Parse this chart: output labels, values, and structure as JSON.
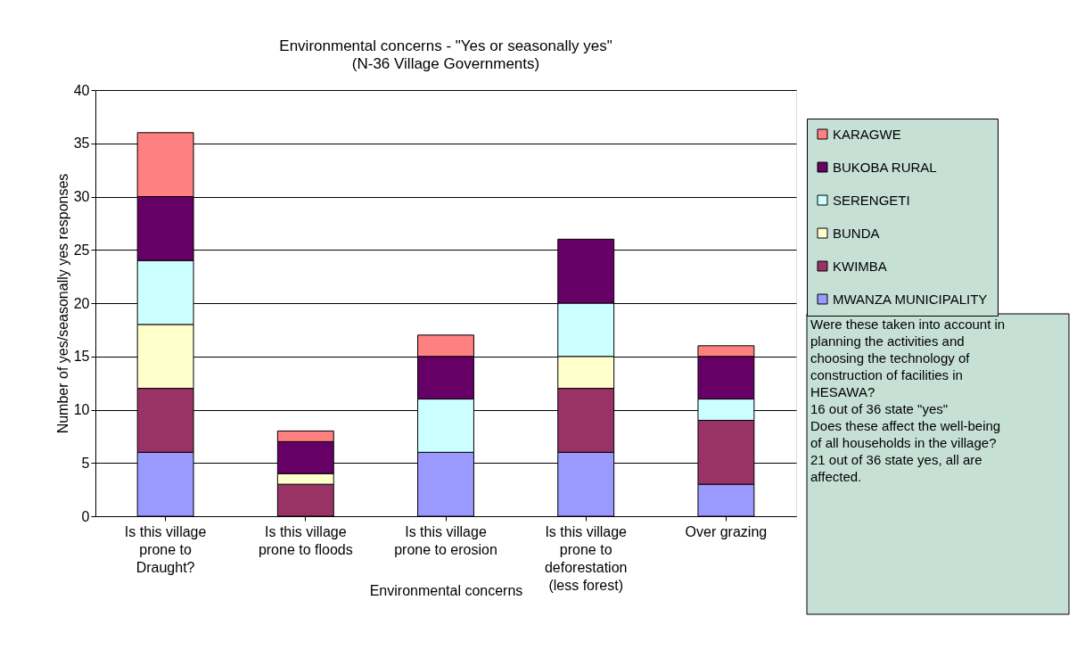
{
  "chart_data": {
    "type": "bar",
    "stacked": true,
    "title": "Environmental concerns - \"Yes or seasonally yes\"",
    "subtitle": "(N-36 Village Governments)",
    "xlabel": "Environmental concerns",
    "ylabel": "Number of yes/seasonally yes responses",
    "categories": [
      "Is this village prone to Draught?",
      "Is this village prone to floods",
      "Is this village prone to erosion",
      "Is this village prone to deforestation (less forest)",
      "Over grazing"
    ],
    "series": [
      {
        "name": "MWANZA MUNICIPALITY",
        "color": "#9999ff",
        "values": [
          6,
          0,
          6,
          6,
          3
        ]
      },
      {
        "name": "KWIMBA",
        "color": "#993366",
        "values": [
          6,
          3,
          0,
          6,
          6
        ]
      },
      {
        "name": "BUNDA",
        "color": "#ffffcc",
        "values": [
          6,
          1,
          0,
          3,
          0
        ]
      },
      {
        "name": "SERENGETI",
        "color": "#ccffff",
        "values": [
          6,
          0,
          5,
          5,
          2
        ]
      },
      {
        "name": "BUKOBA RURAL",
        "color": "#660066",
        "values": [
          6,
          3,
          4,
          6,
          4
        ]
      },
      {
        "name": "KARAGWE",
        "color": "#ff8080",
        "values": [
          6,
          1,
          2,
          0,
          1
        ]
      }
    ],
    "ylim": [
      0,
      40
    ],
    "yticks": [
      0,
      5,
      10,
      15,
      20,
      25,
      30,
      35,
      40
    ],
    "grid": "y",
    "legend": "right",
    "annotations": [
      "Were these taken into account in planning the activities and choosing the technology of construction of facilities in HESAWA?\n16 out of 36 state \"yes\"",
      "Does these affect the well-being of all households in the village?\n21 out of 36 state yes, all are affected."
    ]
  }
}
